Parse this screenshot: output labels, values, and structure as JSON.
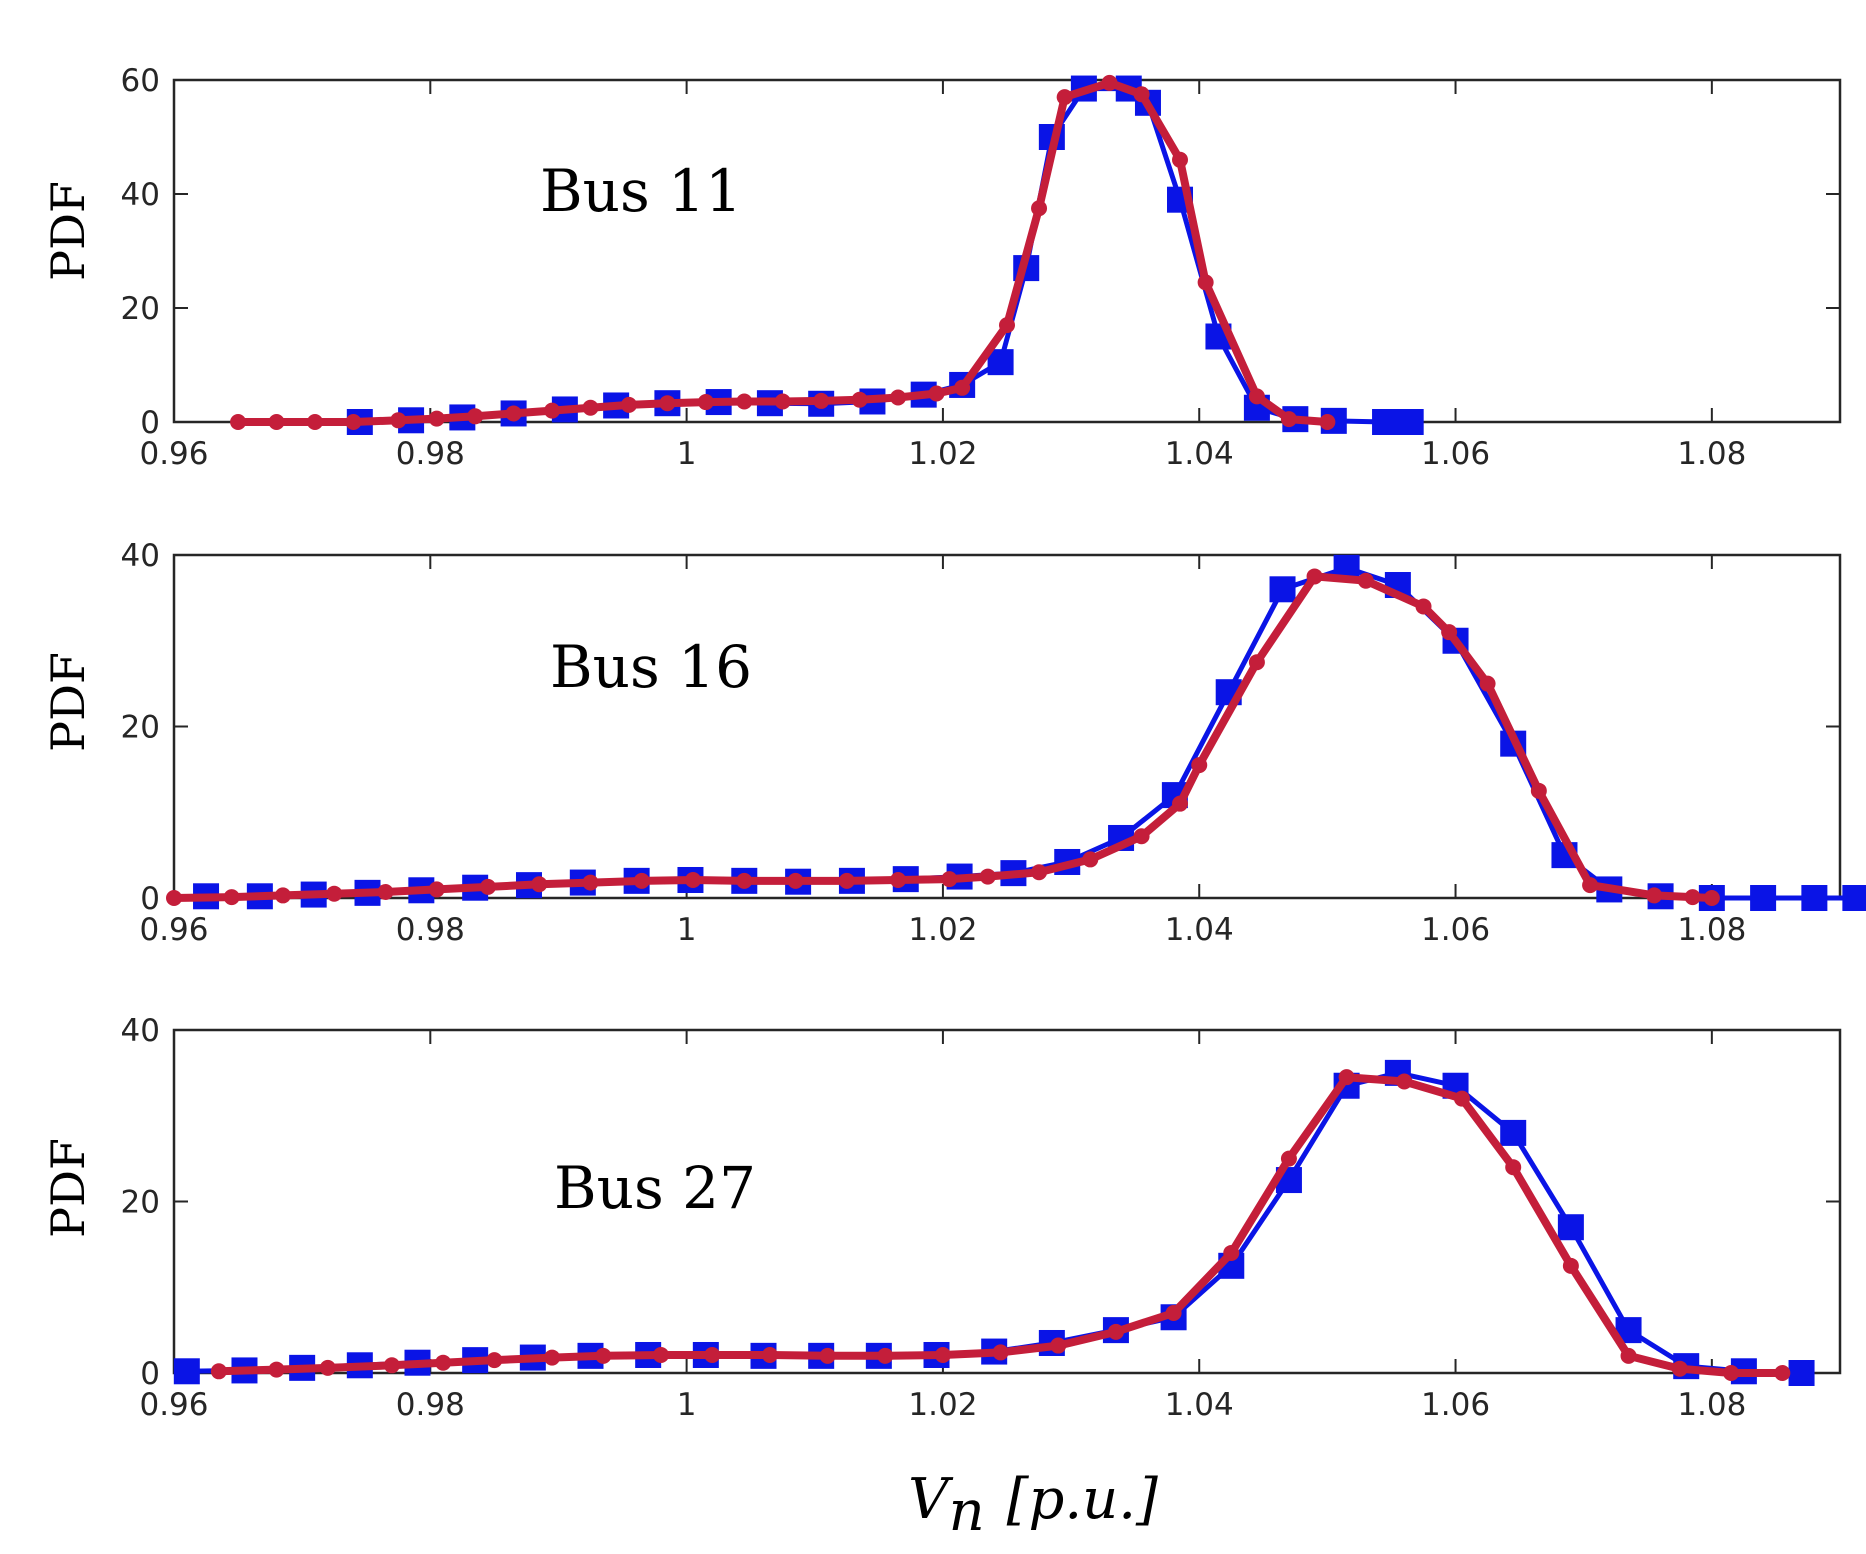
{
  "figure": {
    "xlabel_var": "V",
    "xlabel_sub": "n",
    "xlabel_unit": "[p.u.]",
    "colors": {
      "histogram": "#0a14e6",
      "estimate": "#c41e3a",
      "axis": "#262626"
    }
  },
  "chart_data": [
    {
      "type": "line",
      "annotation": "Bus 11",
      "ylabel": "PDF",
      "xlim": [
        0.96,
        1.09
      ],
      "ylim": [
        0,
        60
      ],
      "xticks": [
        "0.96",
        "0.98",
        "1",
        "1.02",
        "1.04",
        "1.06",
        "1.08"
      ],
      "yticks": [
        "0",
        "20",
        "40",
        "60"
      ],
      "series": [
        {
          "name": "histogram",
          "marker": "square",
          "points": [
            [
              0.9745,
              0
            ],
            [
              0.9785,
              0.3
            ],
            [
              0.9825,
              0.8
            ],
            [
              0.9865,
              1.5
            ],
            [
              0.9905,
              2.2
            ],
            [
              0.9945,
              2.9
            ],
            [
              0.9985,
              3.3
            ],
            [
              1.0025,
              3.5
            ],
            [
              1.0065,
              3.3
            ],
            [
              1.0105,
              3.2
            ],
            [
              1.0145,
              3.6
            ],
            [
              1.0185,
              4.8
            ],
            [
              1.0215,
              6.5
            ],
            [
              1.0245,
              10.5
            ],
            [
              1.0265,
              27
            ],
            [
              1.0285,
              50
            ],
            [
              1.031,
              58.5
            ],
            [
              1.0345,
              58.5
            ],
            [
              1.036,
              56
            ],
            [
              1.0385,
              39
            ],
            [
              1.0415,
              15
            ],
            [
              1.0445,
              2.5
            ],
            [
              1.0475,
              0.5
            ],
            [
              1.0505,
              0.2
            ],
            [
              1.0545,
              0
            ],
            [
              1.0565,
              0
            ]
          ]
        },
        {
          "name": "estimate",
          "marker": "dot",
          "points": [
            [
              0.965,
              0
            ],
            [
              0.968,
              0
            ],
            [
              0.971,
              0
            ],
            [
              0.974,
              0
            ],
            [
              0.9775,
              0.3
            ],
            [
              0.9805,
              0.6
            ],
            [
              0.9835,
              1.0
            ],
            [
              0.9865,
              1.5
            ],
            [
              0.9895,
              2.0
            ],
            [
              0.9925,
              2.5
            ],
            [
              0.9955,
              3.0
            ],
            [
              0.9985,
              3.3
            ],
            [
              1.0015,
              3.5
            ],
            [
              1.0045,
              3.6
            ],
            [
              1.0075,
              3.6
            ],
            [
              1.0105,
              3.7
            ],
            [
              1.0135,
              3.9
            ],
            [
              1.0165,
              4.3
            ],
            [
              1.0195,
              5.0
            ],
            [
              1.0215,
              6.0
            ],
            [
              1.025,
              17
            ],
            [
              1.0275,
              37.5
            ],
            [
              1.0295,
              57
            ],
            [
              1.033,
              59.5
            ],
            [
              1.0355,
              57.5
            ],
            [
              1.0385,
              46
            ],
            [
              1.0405,
              24.5
            ],
            [
              1.0445,
              4.5
            ],
            [
              1.047,
              0.5
            ],
            [
              1.05,
              0
            ]
          ]
        }
      ]
    },
    {
      "type": "line",
      "annotation": "Bus 16",
      "ylabel": "PDF",
      "xlim": [
        0.96,
        1.09
      ],
      "ylim": [
        0,
        40
      ],
      "xticks": [
        "0.96",
        "0.98",
        "1",
        "1.02",
        "1.04",
        "1.06",
        "1.08"
      ],
      "yticks": [
        "0",
        "20",
        "40"
      ],
      "series": [
        {
          "name": "histogram",
          "marker": "square",
          "points": [
            [
              0.9625,
              0.2
            ],
            [
              0.9667,
              0.2
            ],
            [
              0.9709,
              0.4
            ],
            [
              0.9751,
              0.6
            ],
            [
              0.9793,
              0.9
            ],
            [
              0.9835,
              1.2
            ],
            [
              0.9877,
              1.5
            ],
            [
              0.9919,
              1.8
            ],
            [
              0.9961,
              2.0
            ],
            [
              1.0003,
              2.1
            ],
            [
              1.0045,
              2.0
            ],
            [
              1.0087,
              1.9
            ],
            [
              1.0129,
              2.0
            ],
            [
              1.0171,
              2.2
            ],
            [
              1.0213,
              2.5
            ],
            [
              1.0255,
              2.9
            ],
            [
              1.0297,
              4.2
            ],
            [
              1.0339,
              7
            ],
            [
              1.0381,
              12
            ],
            [
              1.0423,
              24
            ],
            [
              1.0465,
              36
            ],
            [
              1.0515,
              38.5
            ],
            [
              1.0555,
              36.5
            ],
            [
              1.06,
              30
            ],
            [
              1.0645,
              18
            ],
            [
              1.0685,
              5
            ],
            [
              1.072,
              1
            ],
            [
              1.076,
              0.2
            ],
            [
              1.08,
              0
            ],
            [
              1.084,
              0
            ],
            [
              1.088,
              0
            ],
            [
              1.0912,
              0
            ]
          ]
        },
        {
          "name": "estimate",
          "marker": "dot",
          "points": [
            [
              0.96,
              0
            ],
            [
              0.9645,
              0.1
            ],
            [
              0.9685,
              0.3
            ],
            [
              0.9725,
              0.5
            ],
            [
              0.9765,
              0.7
            ],
            [
              0.9805,
              1.0
            ],
            [
              0.9845,
              1.3
            ],
            [
              0.9885,
              1.6
            ],
            [
              0.9925,
              1.8
            ],
            [
              0.9965,
              2.0
            ],
            [
              1.0005,
              2.1
            ],
            [
              1.0045,
              2.0
            ],
            [
              1.0085,
              2.0
            ],
            [
              1.0125,
              2.0
            ],
            [
              1.0165,
              2.1
            ],
            [
              1.0205,
              2.2
            ],
            [
              1.0235,
              2.5
            ],
            [
              1.0275,
              3.0
            ],
            [
              1.0315,
              4.5
            ],
            [
              1.0355,
              7.2
            ],
            [
              1.0385,
              11
            ],
            [
              1.04,
              15.5
            ],
            [
              1.0445,
              27.5
            ],
            [
              1.049,
              37.5
            ],
            [
              1.053,
              37
            ],
            [
              1.0575,
              34
            ],
            [
              1.0595,
              31
            ],
            [
              1.0625,
              25
            ],
            [
              1.0665,
              12.5
            ],
            [
              1.0705,
              1.5
            ],
            [
              1.0755,
              0.3
            ],
            [
              1.0785,
              0.1
            ],
            [
              1.08,
              0
            ]
          ]
        }
      ]
    },
    {
      "type": "line",
      "annotation": "Bus 27",
      "ylabel": "PDF",
      "xlim": [
        0.96,
        1.09
      ],
      "ylim": [
        0,
        40
      ],
      "xticks": [
        "0.96",
        "0.98",
        "1",
        "1.02",
        "1.04",
        "1.06",
        "1.08"
      ],
      "yticks": [
        "0",
        "20",
        "40"
      ],
      "series": [
        {
          "name": "histogram",
          "marker": "square",
          "points": [
            [
              0.961,
              0.2
            ],
            [
              0.9655,
              0.3
            ],
            [
              0.97,
              0.6
            ],
            [
              0.9745,
              0.9
            ],
            [
              0.979,
              1.2
            ],
            [
              0.9835,
              1.5
            ],
            [
              0.988,
              1.8
            ],
            [
              0.9925,
              2.0
            ],
            [
              0.997,
              2.1
            ],
            [
              1.0015,
              2.1
            ],
            [
              1.006,
              2.0
            ],
            [
              1.0105,
              2.0
            ],
            [
              1.015,
              2.0
            ],
            [
              1.0195,
              2.1
            ],
            [
              1.024,
              2.5
            ],
            [
              1.0285,
              3.5
            ],
            [
              1.0335,
              5
            ],
            [
              1.038,
              6.5
            ],
            [
              1.0425,
              12.5
            ],
            [
              1.047,
              22.5
            ],
            [
              1.0515,
              33.5
            ],
            [
              1.0555,
              35
            ],
            [
              1.06,
              33.5
            ],
            [
              1.0645,
              28
            ],
            [
              1.069,
              17
            ],
            [
              1.0735,
              5
            ],
            [
              1.078,
              0.8
            ],
            [
              1.0825,
              0.2
            ],
            [
              1.087,
              0
            ]
          ]
        },
        {
          "name": "estimate",
          "marker": "dot",
          "points": [
            [
              0.9635,
              0.2
            ],
            [
              0.968,
              0.4
            ],
            [
              0.972,
              0.6
            ],
            [
              0.977,
              0.9
            ],
            [
              0.981,
              1.2
            ],
            [
              0.985,
              1.5
            ],
            [
              0.9895,
              1.8
            ],
            [
              0.9935,
              2.0
            ],
            [
              0.998,
              2.1
            ],
            [
              1.002,
              2.1
            ],
            [
              1.0065,
              2.1
            ],
            [
              1.011,
              2.0
            ],
            [
              1.0155,
              2.0
            ],
            [
              1.02,
              2.1
            ],
            [
              1.0245,
              2.4
            ],
            [
              1.029,
              3.2
            ],
            [
              1.0335,
              4.8
            ],
            [
              1.038,
              7
            ],
            [
              1.0425,
              14
            ],
            [
              1.047,
              25
            ],
            [
              1.0515,
              34.5
            ],
            [
              1.056,
              34
            ],
            [
              1.0605,
              32
            ],
            [
              1.0645,
              24
            ],
            [
              1.069,
              12.5
            ],
            [
              1.0735,
              2
            ],
            [
              1.0775,
              0.5
            ],
            [
              1.0815,
              0
            ],
            [
              1.0855,
              0
            ]
          ]
        }
      ]
    }
  ]
}
